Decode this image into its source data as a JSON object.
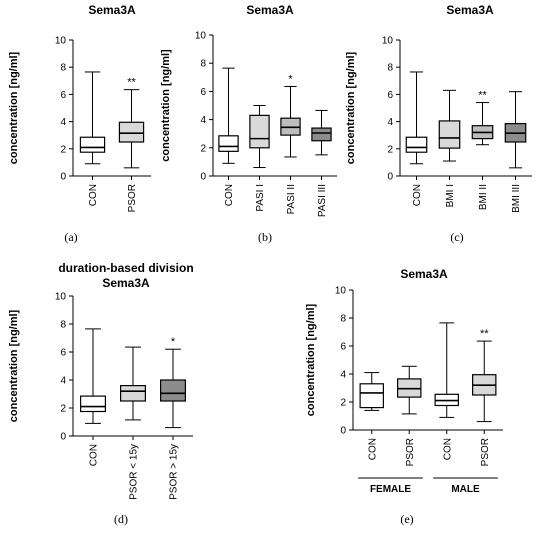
{
  "fill_colors": {
    "white": "#ffffff",
    "light": "#d9d9d9",
    "mid": "#bdbdbd",
    "dark": "#8c8c8c"
  },
  "chart_data": [
    {
      "panel_label": "(a)",
      "type": "box",
      "title": "Sema3A",
      "ylabel": "concentration [ng/ml]",
      "ylim": [
        0,
        10
      ],
      "yticks": [
        0,
        2,
        4,
        6,
        8,
        10
      ],
      "categories": [
        "CON",
        "PSOR"
      ],
      "boxes": [
        {
          "min": 0.9,
          "q1": 1.75,
          "median": 2.1,
          "q3": 2.85,
          "max": 7.65,
          "fill": "white",
          "annotation": ""
        },
        {
          "min": 0.6,
          "q1": 2.5,
          "median": 3.15,
          "q3": 3.95,
          "max": 6.35,
          "fill": "light",
          "annotation": "**"
        }
      ]
    },
    {
      "panel_label": "(b)",
      "type": "box",
      "title": "Sema3A",
      "ylabel": "concentration [ng/ml]",
      "ylim": [
        0,
        10
      ],
      "yticks": [
        0,
        2,
        4,
        6,
        8,
        10
      ],
      "categories": [
        "CON",
        "PASI I",
        "PASI II",
        "PASI III"
      ],
      "boxes": [
        {
          "min": 0.9,
          "q1": 1.75,
          "median": 2.1,
          "q3": 2.85,
          "max": 7.65,
          "fill": "white",
          "annotation": ""
        },
        {
          "min": 0.6,
          "q1": 2.0,
          "median": 2.65,
          "q3": 4.3,
          "max": 5.0,
          "fill": "light",
          "annotation": ""
        },
        {
          "min": 1.35,
          "q1": 2.9,
          "median": 3.45,
          "q3": 4.1,
          "max": 6.35,
          "fill": "mid",
          "annotation": "*"
        },
        {
          "min": 1.5,
          "q1": 2.5,
          "median": 3.05,
          "q3": 3.4,
          "max": 4.65,
          "fill": "dark",
          "annotation": ""
        }
      ]
    },
    {
      "panel_label": "(c)",
      "type": "box",
      "title": "Sema3A",
      "ylabel": "concentration [ng/ml]",
      "ylim": [
        0,
        10
      ],
      "yticks": [
        0,
        2,
        4,
        6,
        8,
        10
      ],
      "categories": [
        "CON",
        "BMI I",
        "BMI II",
        "BMI III"
      ],
      "boxes": [
        {
          "min": 0.9,
          "q1": 1.75,
          "median": 2.1,
          "q3": 2.85,
          "max": 7.65,
          "fill": "white",
          "annotation": ""
        },
        {
          "min": 1.1,
          "q1": 2.05,
          "median": 2.8,
          "q3": 4.05,
          "max": 6.3,
          "fill": "light",
          "annotation": ""
        },
        {
          "min": 2.3,
          "q1": 2.75,
          "median": 3.2,
          "q3": 3.7,
          "max": 5.4,
          "fill": "mid",
          "annotation": "**"
        },
        {
          "min": 0.6,
          "q1": 2.5,
          "median": 3.15,
          "q3": 3.85,
          "max": 6.2,
          "fill": "dark",
          "annotation": ""
        }
      ]
    },
    {
      "panel_label": "(d)",
      "type": "box",
      "title": "duration-based division\nSema3A",
      "ylabel": "concentration [ng/ml]",
      "ylim": [
        0,
        10
      ],
      "yticks": [
        0,
        2,
        4,
        6,
        8,
        10
      ],
      "categories": [
        "CON",
        "PSOR < 15y",
        "PSOR > 15y"
      ],
      "boxes": [
        {
          "min": 0.9,
          "q1": 1.75,
          "median": 2.1,
          "q3": 2.85,
          "max": 7.65,
          "fill": "white",
          "annotation": ""
        },
        {
          "min": 1.15,
          "q1": 2.5,
          "median": 3.2,
          "q3": 3.6,
          "max": 6.35,
          "fill": "light",
          "annotation": ""
        },
        {
          "min": 0.6,
          "q1": 2.5,
          "median": 3.05,
          "q3": 4.0,
          "max": 6.2,
          "fill": "dark",
          "annotation": "*"
        }
      ]
    },
    {
      "panel_label": "(e)",
      "type": "box",
      "title": "Sema3A",
      "ylabel": "concentration [ng/ml]",
      "ylim": [
        0,
        10
      ],
      "yticks": [
        0,
        2,
        4,
        6,
        8,
        10
      ],
      "categories": [
        "CON",
        "PSOR",
        "CON",
        "PSOR"
      ],
      "groups": [
        {
          "label": "FEMALE",
          "members": [
            0,
            1
          ]
        },
        {
          "label": "MALE",
          "members": [
            2,
            3
          ]
        }
      ],
      "boxes": [
        {
          "min": 1.4,
          "q1": 1.6,
          "median": 2.65,
          "q3": 3.3,
          "max": 4.1,
          "fill": "white",
          "annotation": ""
        },
        {
          "min": 1.15,
          "q1": 2.35,
          "median": 2.95,
          "q3": 3.65,
          "max": 4.55,
          "fill": "light",
          "annotation": ""
        },
        {
          "min": 0.9,
          "q1": 1.75,
          "median": 2.1,
          "q3": 2.55,
          "max": 7.65,
          "fill": "white",
          "annotation": ""
        },
        {
          "min": 0.6,
          "q1": 2.5,
          "median": 3.2,
          "q3": 3.95,
          "max": 6.35,
          "fill": "light",
          "annotation": "**"
        }
      ]
    }
  ]
}
